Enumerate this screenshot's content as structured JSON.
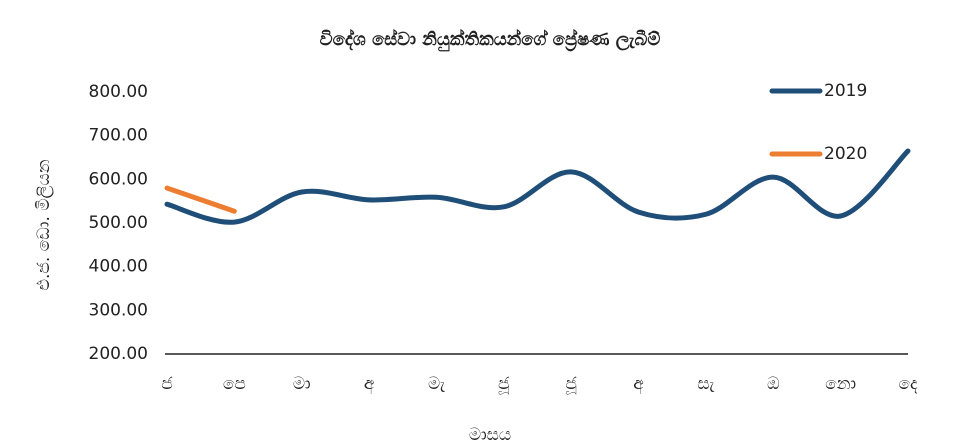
{
  "chart_data": {
    "type": "line",
    "title": "විදේශ සේවා නියුක්තිකයන්ගේ ප්‍රේෂණ ලැබීම්",
    "x_label": "මාසය",
    "y_label": "එ.ජ. ඩො. මිලියන",
    "categories": [
      "ජ",
      "පෙ",
      "මා",
      "අ",
      "මැ",
      "ජූ",
      "ජූ",
      "අ",
      "සැ",
      "ඔ",
      "නො",
      "දෙ"
    ],
    "series": [
      {
        "name": "2019",
        "color": "#1f4e79",
        "values": [
          543,
          502,
          571,
          553,
          559,
          537,
          617,
          525,
          520,
          605,
          516,
          665
        ]
      },
      {
        "name": "2020",
        "color": "#ed7d31",
        "values": [
          580,
          527,
          null,
          null,
          null,
          null,
          null,
          null,
          null,
          null,
          null,
          null
        ]
      }
    ],
    "ylim": [
      200,
      800
    ],
    "yticks": [
      {
        "value": 200,
        "label": "200.00"
      },
      {
        "value": 300,
        "label": "300.00"
      },
      {
        "value": 400,
        "label": "400.00"
      },
      {
        "value": 500,
        "label": "500.00"
      },
      {
        "value": 600,
        "label": "600.00"
      },
      {
        "value": 700,
        "label": "700.00"
      },
      {
        "value": 800,
        "label": "800.00"
      }
    ],
    "legend": "top-right"
  }
}
